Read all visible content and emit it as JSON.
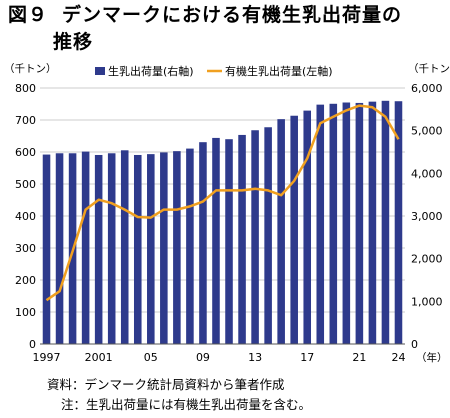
{
  "figure": {
    "number": "図９",
    "title_line1": "デンマークにおける有機生乳出荷量の",
    "title_line2": "推移"
  },
  "notes": {
    "source": "資料：デンマーク統計局資料から筆者作成",
    "note": "注：生乳出荷量には有機生乳出荷量を含む。"
  },
  "colors": {
    "bar": "#2e3a8c",
    "line": "#f0a020"
  },
  "chart_data": {
    "type": "bar",
    "left_unit": "（千トン）",
    "right_unit": "（千トン）",
    "x_unit": "（年）",
    "x_tick_labels": [
      "1997",
      "2001",
      "05",
      "09",
      "13",
      "17",
      "21",
      "24"
    ],
    "years": [
      1997,
      1998,
      1999,
      2000,
      2001,
      2002,
      2003,
      2004,
      2005,
      2006,
      2007,
      2008,
      2009,
      2010,
      2011,
      2012,
      2013,
      2014,
      2015,
      2016,
      2017,
      2018,
      2019,
      2020,
      2021,
      2022,
      2023,
      2024
    ],
    "left_axis": {
      "range": [
        0,
        800
      ],
      "ticks": [
        0,
        100,
        200,
        300,
        400,
        500,
        600,
        700,
        800
      ]
    },
    "right_axis": {
      "range": [
        0,
        6000
      ],
      "ticks": [
        0,
        1000,
        2000,
        3000,
        4000,
        5000,
        6000
      ],
      "tick_labels": [
        "0",
        "1,000",
        "2,000",
        "3,000",
        "4,000",
        "5,000",
        "6,000"
      ]
    },
    "legend": {
      "position": "top",
      "bar_label": "生乳出荷量(右軸)",
      "line_label": "有機生乳出荷量(左軸)"
    },
    "series": [
      {
        "name": "生乳出荷量(右軸)",
        "type": "bar",
        "axis": "right",
        "values": [
          4440,
          4470,
          4470,
          4510,
          4430,
          4470,
          4540,
          4430,
          4450,
          4490,
          4520,
          4580,
          4730,
          4830,
          4800,
          4900,
          5010,
          5080,
          5270,
          5350,
          5470,
          5610,
          5630,
          5660,
          5650,
          5680,
          5700,
          5690
        ]
      },
      {
        "name": "有機生乳出荷量(左軸)",
        "type": "line",
        "axis": "left",
        "values": [
          137,
          165,
          290,
          420,
          451,
          440,
          420,
          397,
          395,
          420,
          420,
          430,
          445,
          480,
          480,
          480,
          485,
          480,
          465,
          510,
          580,
          690,
          710,
          730,
          745,
          740,
          710,
          640
        ]
      }
    ]
  }
}
